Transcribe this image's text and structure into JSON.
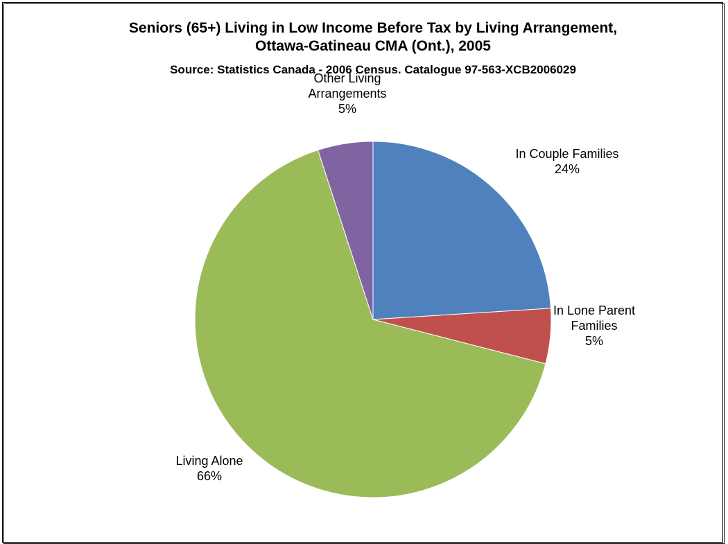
{
  "chart_data": {
    "type": "pie",
    "title": "Seniors (65+) Living in Low Income Before Tax by Living Arrangement,",
    "title_line2": "Ottawa-Gatineau CMA (Ont.), 2005",
    "subtitle": "Source:  Statistics Canada - 2006 Census.  Catalogue 97-563-XCB2006029",
    "slices": [
      {
        "label": "In Couple Families",
        "label_lines": [
          "In Couple Families"
        ],
        "value": 24,
        "value_label": "24%",
        "color": "#4f81bd"
      },
      {
        "label": "In Lone Parent Families",
        "label_lines": [
          "In Lone Parent",
          "Families"
        ],
        "value": 5,
        "value_label": "5%",
        "color": "#c0504d"
      },
      {
        "label": "Living Alone",
        "label_lines": [
          "Living Alone"
        ],
        "value": 66,
        "value_label": "66%",
        "color": "#9bbb59"
      },
      {
        "label": "Other Living Arrangements",
        "label_lines": [
          "Other Living",
          "Arrangements"
        ],
        "value": 5,
        "value_label": "5%",
        "color": "#8064a2"
      }
    ],
    "legend": "none",
    "data_labels": "outside"
  }
}
